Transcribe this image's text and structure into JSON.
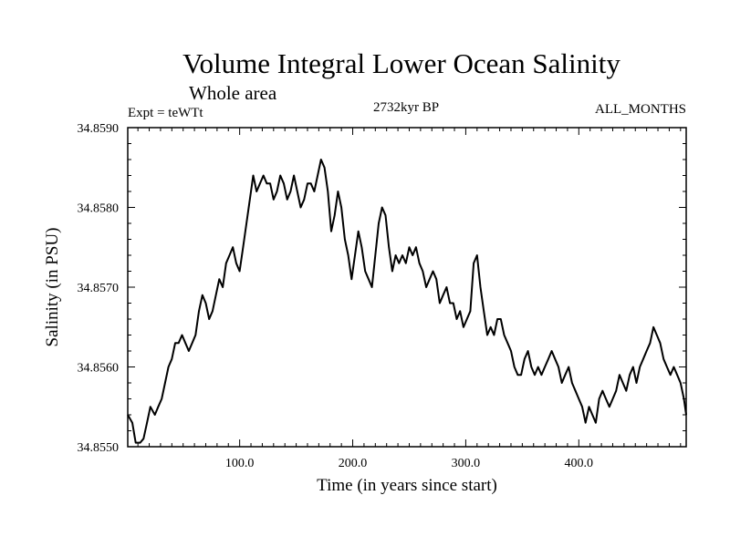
{
  "chart_data": {
    "type": "line",
    "title": "Volume Integral Lower Ocean Salinity",
    "subtitle": "Whole area",
    "expt_label": "Expt = teWTt",
    "period_label": "2732kyr BP",
    "months_label": "ALL_MONTHS",
    "xlabel": "Time (in years since start)",
    "ylabel": "Salinity (in PSU)",
    "xlim": [
      1,
      495
    ],
    "ylim": [
      34.855,
      34.859
    ],
    "x_ticks": [
      100,
      200,
      300,
      400
    ],
    "x_tick_labels": [
      "100.0",
      "200.0",
      "300.0",
      "400.0"
    ],
    "y_ticks": [
      34.855,
      34.856,
      34.857,
      34.858,
      34.859
    ],
    "y_tick_labels": [
      "34.8550",
      "34.8560",
      "34.8570",
      "34.8580",
      "34.8590"
    ],
    "grid": false,
    "series": [
      {
        "name": "salinity",
        "color": "#000000",
        "x": [
          1,
          5,
          8,
          12,
          15,
          18,
          21,
          25,
          28,
          31,
          34,
          37,
          40,
          43,
          46,
          49,
          52,
          55,
          58,
          61,
          64,
          67,
          70,
          73,
          76,
          79,
          82,
          85,
          88,
          91,
          94,
          97,
          100,
          103,
          106,
          109,
          112,
          115,
          118,
          121,
          124,
          127,
          130,
          133,
          136,
          139,
          142,
          145,
          148,
          151,
          154,
          157,
          160,
          163,
          166,
          169,
          172,
          175,
          178,
          181,
          184,
          187,
          190,
          193,
          196,
          199,
          202,
          205,
          208,
          211,
          214,
          217,
          220,
          223,
          226,
          229,
          232,
          235,
          238,
          241,
          244,
          247,
          250,
          253,
          256,
          259,
          262,
          265,
          268,
          271,
          274,
          277,
          280,
          283,
          286,
          289,
          292,
          295,
          298,
          301,
          304,
          307,
          310,
          313,
          316,
          319,
          322,
          325,
          328,
          331,
          334,
          337,
          340,
          343,
          346,
          349,
          352,
          355,
          358,
          361,
          364,
          367,
          370,
          373,
          376,
          379,
          382,
          385,
          388,
          391,
          394,
          397,
          400,
          403,
          406,
          409,
          412,
          415,
          418,
          421,
          424,
          427,
          430,
          433,
          436,
          439,
          442,
          445,
          448,
          451,
          454,
          457,
          460,
          463,
          466,
          469,
          472,
          475,
          478,
          481,
          484,
          487,
          490,
          493,
          495
        ],
        "values": [
          34.8554,
          34.8553,
          34.85505,
          34.85505,
          34.8551,
          34.8553,
          34.8555,
          34.8554,
          34.8555,
          34.8556,
          34.8558,
          34.856,
          34.8561,
          34.8563,
          34.8563,
          34.8564,
          34.8563,
          34.8562,
          34.8563,
          34.8564,
          34.8567,
          34.8569,
          34.8568,
          34.8566,
          34.8567,
          34.8569,
          34.8571,
          34.857,
          34.8573,
          34.8574,
          34.8575,
          34.8573,
          34.8572,
          34.8575,
          34.8578,
          34.8581,
          34.8584,
          34.8582,
          34.8583,
          34.8584,
          34.8583,
          34.8583,
          34.8581,
          34.8582,
          34.8584,
          34.8583,
          34.8581,
          34.8582,
          34.8584,
          34.8582,
          34.858,
          34.8581,
          34.8583,
          34.8583,
          34.8582,
          34.8584,
          34.8586,
          34.8585,
          34.8582,
          34.8577,
          34.8579,
          34.8582,
          34.858,
          34.8576,
          34.8574,
          34.8571,
          34.8574,
          34.8577,
          34.8575,
          34.8572,
          34.8571,
          34.857,
          34.8574,
          34.8578,
          34.858,
          34.8579,
          34.8575,
          34.8572,
          34.8574,
          34.8573,
          34.8574,
          34.8573,
          34.8575,
          34.8574,
          34.8575,
          34.8573,
          34.8572,
          34.857,
          34.8571,
          34.8572,
          34.8571,
          34.8568,
          34.8569,
          34.857,
          34.8568,
          34.8568,
          34.8566,
          34.8567,
          34.8565,
          34.8566,
          34.8567,
          34.8573,
          34.8574,
          34.857,
          34.8567,
          34.8564,
          34.8565,
          34.8564,
          34.8566,
          34.8566,
          34.8564,
          34.8563,
          34.8562,
          34.856,
          34.8559,
          34.8559,
          34.8561,
          34.8562,
          34.856,
          34.8559,
          34.856,
          34.8559,
          34.856,
          34.8561,
          34.8562,
          34.8561,
          34.856,
          34.8558,
          34.8559,
          34.856,
          34.8558,
          34.8557,
          34.8556,
          34.8555,
          34.8553,
          34.8555,
          34.8554,
          34.8553,
          34.8556,
          34.8557,
          34.8556,
          34.8555,
          34.8556,
          34.8557,
          34.8559,
          34.8558,
          34.8557,
          34.8559,
          34.856,
          34.8558,
          34.856,
          34.8561,
          34.8562,
          34.8563,
          34.8565,
          34.8564,
          34.8563,
          34.8561,
          34.856,
          34.8559,
          34.856,
          34.8559,
          34.8558,
          34.8556,
          34.8554
        ]
      }
    ]
  }
}
